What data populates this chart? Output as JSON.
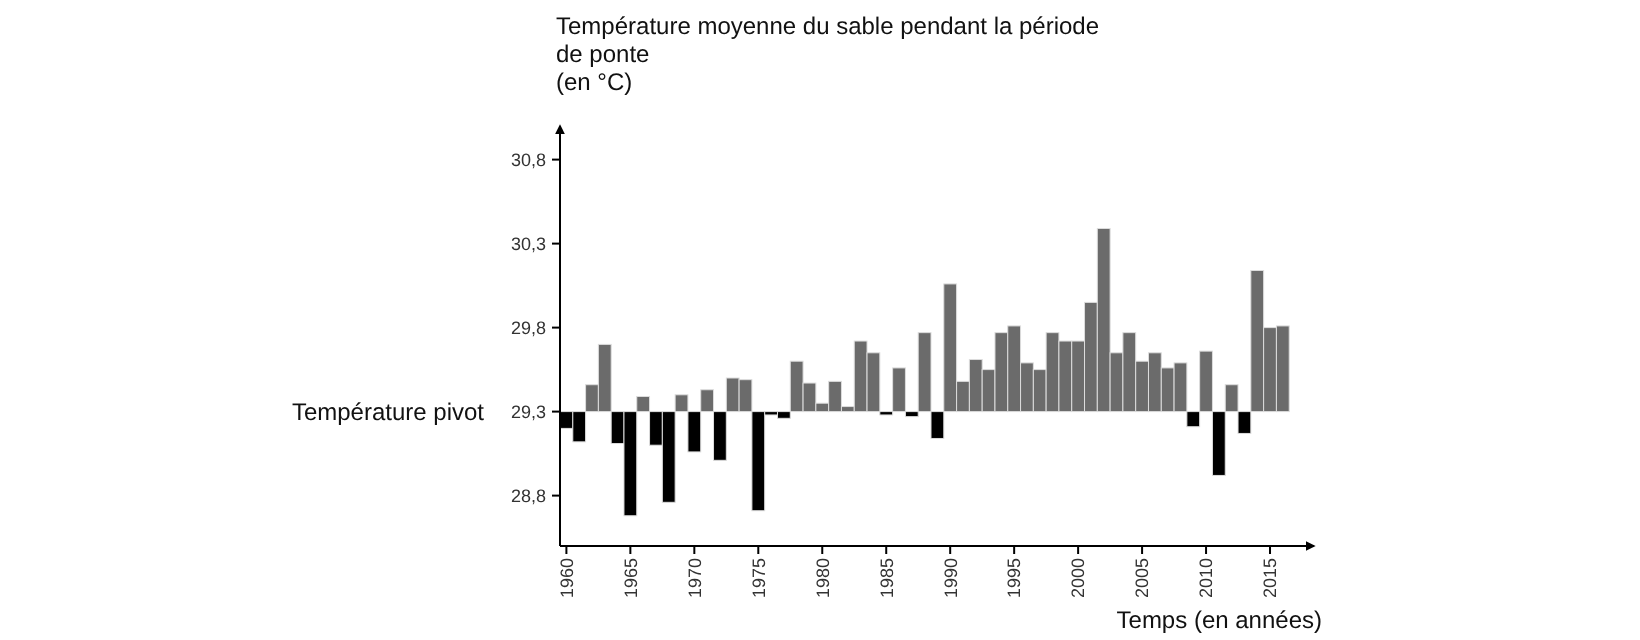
{
  "chart_data": {
    "type": "bar",
    "ylabel": "Température moyenne du sable pendant la période\nde ponte\n(en °C)",
    "xlabel": "Temps (en années)",
    "categories": [
      "1960",
      null,
      null,
      null,
      null,
      "1965",
      null,
      null,
      null,
      null,
      "1970",
      null,
      null,
      null,
      null,
      "1975",
      null,
      null,
      null,
      null,
      "1980",
      null,
      null,
      null,
      null,
      "1985",
      null,
      null,
      null,
      null,
      "1990",
      null,
      null,
      null,
      null,
      "1995",
      null,
      null,
      null,
      null,
      "2000",
      null,
      null,
      null,
      null,
      "2005",
      null,
      null,
      null,
      null,
      "2010",
      null,
      null,
      null,
      null,
      "2015",
      null
    ],
    "values": [
      -0.1,
      -0.18,
      0.16,
      0.4,
      -0.19,
      -0.62,
      0.09,
      -0.2,
      -0.54,
      0.1,
      -0.24,
      0.13,
      -0.29,
      0.2,
      0.19,
      -0.59,
      -0.02,
      -0.04,
      0.3,
      0.17,
      0.05,
      0.18,
      0.03,
      0.42,
      0.35,
      -0.02,
      0.26,
      -0.03,
      0.47,
      -0.16,
      0.76,
      0.18,
      0.31,
      0.25,
      0.47,
      0.51,
      0.29,
      0.25,
      0.47,
      0.42,
      0.42,
      0.65,
      1.09,
      0.35,
      0.47,
      0.3,
      0.35,
      0.26,
      0.29,
      -0.09,
      0.36,
      -0.38,
      0.16,
      -0.13,
      0.84,
      0.5,
      0.51
    ],
    "base": [
      29.3,
      29.3,
      29.3,
      29.3,
      29.3,
      29.3,
      29.3,
      29.3,
      29.3,
      29.3,
      29.3,
      29.3,
      29.3,
      29.3,
      29.3,
      29.3,
      29.3,
      29.3,
      29.3,
      29.3,
      29.3,
      29.3,
      29.3,
      29.3,
      29.3,
      29.3,
      29.3,
      29.3,
      29.3,
      29.3,
      29.3,
      29.3,
      29.3,
      29.3,
      29.3,
      29.3,
      29.3,
      29.3,
      29.3,
      29.3,
      29.3,
      29.3,
      29.3,
      29.3,
      29.3,
      29.3,
      29.3,
      29.3,
      29.3,
      29.3,
      29.3,
      29.3,
      29.3,
      29.3,
      29.3,
      29.3,
      29.3
    ],
    "colors": [
      "#000000",
      "#000000",
      "#6b6b6b",
      "#6b6b6b",
      "#000000",
      "#000000",
      "#6b6b6b",
      "#000000",
      "#000000",
      "#6b6b6b",
      "#000000",
      "#6b6b6b",
      "#000000",
      "#6b6b6b",
      "#6b6b6b",
      "#000000",
      "#000000",
      "#000000",
      "#6b6b6b",
      "#6b6b6b",
      "#6b6b6b",
      "#6b6b6b",
      "#6b6b6b",
      "#6b6b6b",
      "#6b6b6b",
      "#000000",
      "#6b6b6b",
      "#000000",
      "#6b6b6b",
      "#000000",
      "#6b6b6b",
      "#6b6b6b",
      "#6b6b6b",
      "#6b6b6b",
      "#6b6b6b",
      "#6b6b6b",
      "#6b6b6b",
      "#6b6b6b",
      "#6b6b6b",
      "#6b6b6b",
      "#6b6b6b",
      "#6b6b6b",
      "#6b6b6b",
      "#6b6b6b",
      "#6b6b6b",
      "#6b6b6b",
      "#6b6b6b",
      "#6b6b6b",
      "#6b6b6b",
      "#000000",
      "#6b6b6b",
      "#000000",
      "#6b6b6b",
      "#000000",
      "#6b6b6b",
      "#6b6b6b",
      "#6b6b6b"
    ],
    "ylim": [
      28.5,
      31.0
    ],
    "yticks": [
      {
        "value": 28.8,
        "label": "28,8"
      },
      {
        "value": 29.3,
        "label": "29,3"
      },
      {
        "value": 29.8,
        "label": "29,8"
      },
      {
        "value": 30.3,
        "label": "30,3"
      },
      {
        "value": 30.8,
        "label": "30,8"
      }
    ],
    "annotations": [
      "Température pivot"
    ],
    "grid": false
  }
}
